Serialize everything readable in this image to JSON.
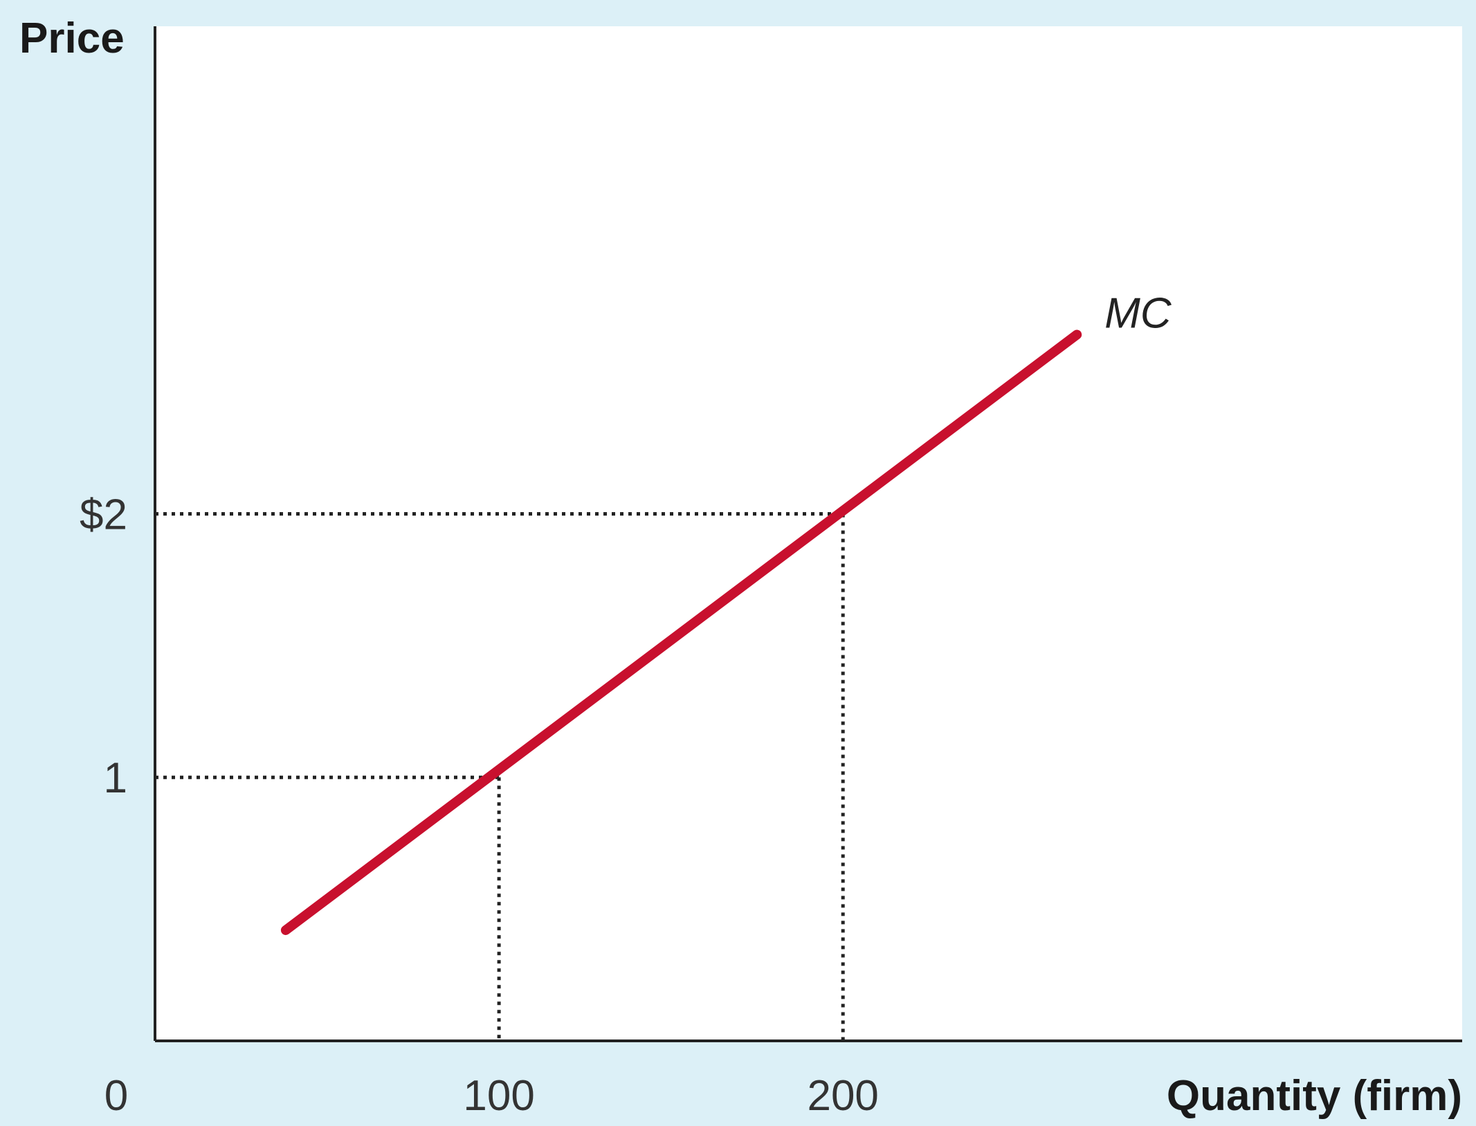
{
  "chart_data": {
    "type": "line",
    "xlabel": "Quantity (firm)",
    "ylabel": "Price",
    "xlim": [
      0,
      380
    ],
    "ylim": [
      0,
      3.85
    ],
    "origin_label": "0",
    "x_ticks": [
      {
        "value": 100,
        "label": "100"
      },
      {
        "value": 200,
        "label": "200"
      }
    ],
    "y_ticks": [
      {
        "value": 1,
        "label": "1"
      },
      {
        "value": 2,
        "label": "$2"
      }
    ],
    "series": [
      {
        "name": "MC",
        "color": "#c8102e",
        "points": [
          [
            38,
            0.42
          ],
          [
            268,
            2.68
          ]
        ]
      }
    ],
    "reference_points": [
      {
        "x": 100,
        "y": 1
      },
      {
        "x": 200,
        "y": 2
      }
    ],
    "grid": false,
    "legend": "none",
    "colors": {
      "background": "#dcf0f7",
      "plot_area": "#ffffff",
      "axis": "#222222",
      "guide_lines": "#222222"
    }
  }
}
